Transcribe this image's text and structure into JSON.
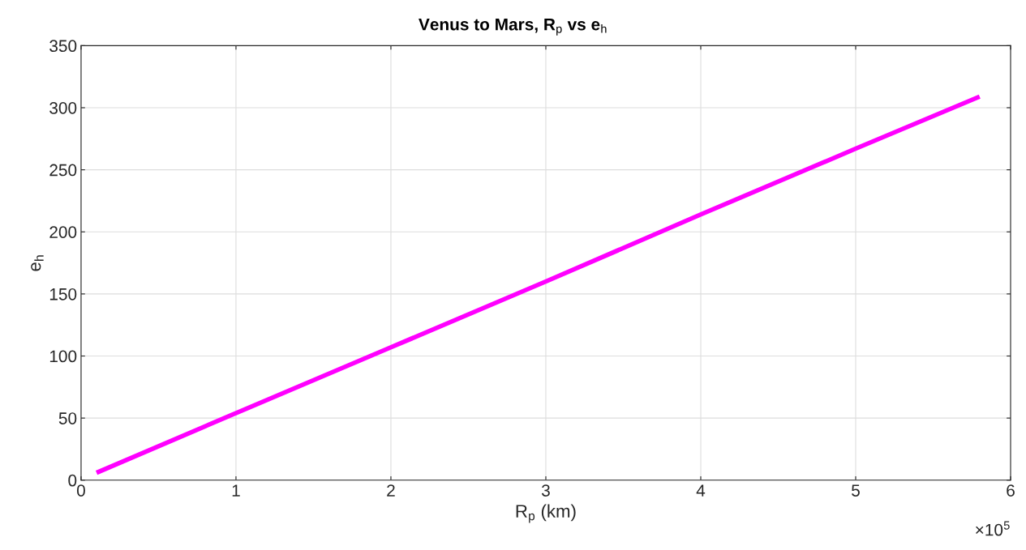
{
  "chart_data": {
    "type": "line",
    "title": "Venus to Mars, R$_{p}$ vs e$_{h}$",
    "xlabel": "R$_{p}$ (km)",
    "ylabel": "e$_{h}$",
    "x": [
      0.1,
      1,
      2,
      3,
      4,
      5,
      5.8
    ],
    "series": [
      {
        "color": "#ff00ff",
        "values": [
          6,
          54,
          107,
          160,
          214,
          267,
          309
        ]
      }
    ],
    "xlim": [
      0,
      6
    ],
    "xticks": [
      0,
      1,
      2,
      3,
      4,
      5,
      6
    ],
    "ylim": [
      0,
      350
    ],
    "yticks": [
      0,
      50,
      100,
      150,
      200,
      250,
      300,
      350
    ],
    "annotations": [
      "×10$^{5}$"
    ],
    "grid": true,
    "legend": false,
    "marker": "none",
    "line_style": "solid"
  }
}
